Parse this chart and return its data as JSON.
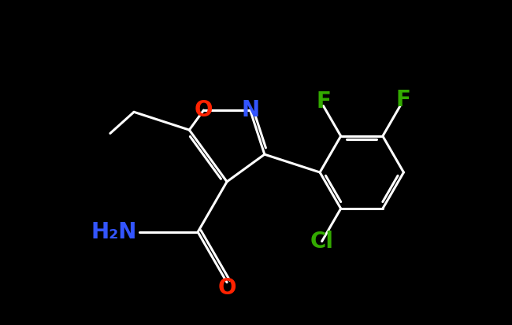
{
  "background_color": "#000000",
  "bond_color": "#ffffff",
  "bond_width": 2.2,
  "figsize": [
    6.5,
    4.13
  ],
  "dpi": 100,
  "colors": {
    "O": "#ff2200",
    "N": "#3355ff",
    "F": "#33aa00",
    "Cl": "#33aa00",
    "bond": "#ffffff"
  },
  "font_size_atom": 20
}
